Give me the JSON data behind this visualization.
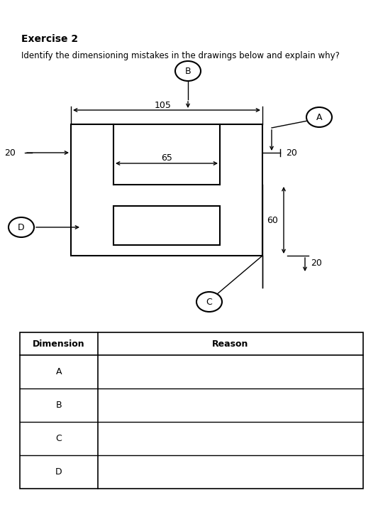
{
  "title": "Exercise 2",
  "subtitle": "Identify the dimensioning mistakes in the drawings below and explain why?",
  "background_color": "#ffffff",
  "lw_main": 1.5,
  "lw_dim": 1.0,
  "table": {
    "headers": [
      "Dimension",
      "Reason"
    ],
    "rows": [
      "A",
      "B",
      "C",
      "D"
    ]
  }
}
